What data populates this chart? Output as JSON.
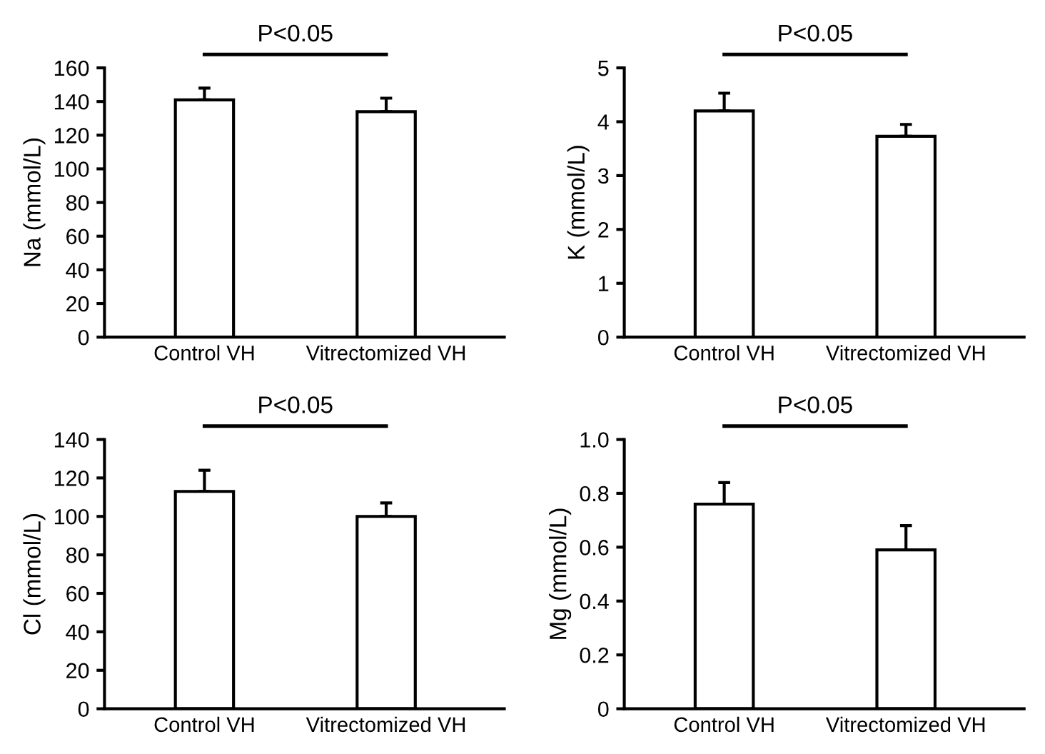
{
  "chart_data": [
    {
      "type": "bar",
      "categories": [
        "Control VH",
        "Vitrectomized VH"
      ],
      "ylabel": "Na (mmol/L)",
      "series": [
        {
          "color": "#ffffff",
          "values": [
            141,
            134
          ],
          "errors": [
            [
              141,
              148
            ],
            [
              134,
              142
            ]
          ]
        }
      ],
      "ylim": [
        0,
        160
      ],
      "yticks": [
        0,
        20,
        40,
        60,
        80,
        100,
        120,
        140,
        160
      ],
      "annotations": [
        "P<0.05"
      ]
    },
    {
      "type": "bar",
      "categories": [
        "Control VH",
        "Vitrectomized VH"
      ],
      "ylabel": "K (mmol/L)",
      "series": [
        {
          "color": "#ffffff",
          "values": [
            4.2,
            3.73
          ],
          "errors": [
            [
              4.2,
              4.53
            ],
            [
              3.73,
              3.95
            ]
          ]
        }
      ],
      "ylim": [
        0,
        5
      ],
      "yticks": [
        0,
        1,
        2,
        3,
        4,
        5
      ],
      "annotations": [
        "P<0.05"
      ]
    },
    {
      "type": "bar",
      "categories": [
        "Control VH",
        "Vitrectomized VH"
      ],
      "ylabel": "Cl (mmol/L)",
      "series": [
        {
          "color": "#ffffff",
          "values": [
            113,
            100
          ],
          "errors": [
            [
              113,
              124
            ],
            [
              100,
              107
            ]
          ]
        }
      ],
      "ylim": [
        0,
        140
      ],
      "yticks": [
        0,
        20,
        40,
        60,
        80,
        100,
        120,
        140
      ],
      "annotations": [
        "P<0.05"
      ]
    },
    {
      "type": "bar",
      "categories": [
        "Control VH",
        "Vitrectomized VH"
      ],
      "ylabel": "Mg (mmol/L)",
      "series": [
        {
          "color": "#ffffff",
          "values": [
            0.76,
            0.59
          ],
          "errors": [
            [
              0.76,
              0.84
            ],
            [
              0.59,
              0.68
            ]
          ]
        }
      ],
      "ylim": [
        0,
        1
      ],
      "yticks": [
        0,
        0.2,
        0.4,
        0.6,
        0.8,
        {
          "value": 1,
          "label": "1.0"
        }
      ],
      "annotations": [
        "P<0.05"
      ]
    }
  ]
}
